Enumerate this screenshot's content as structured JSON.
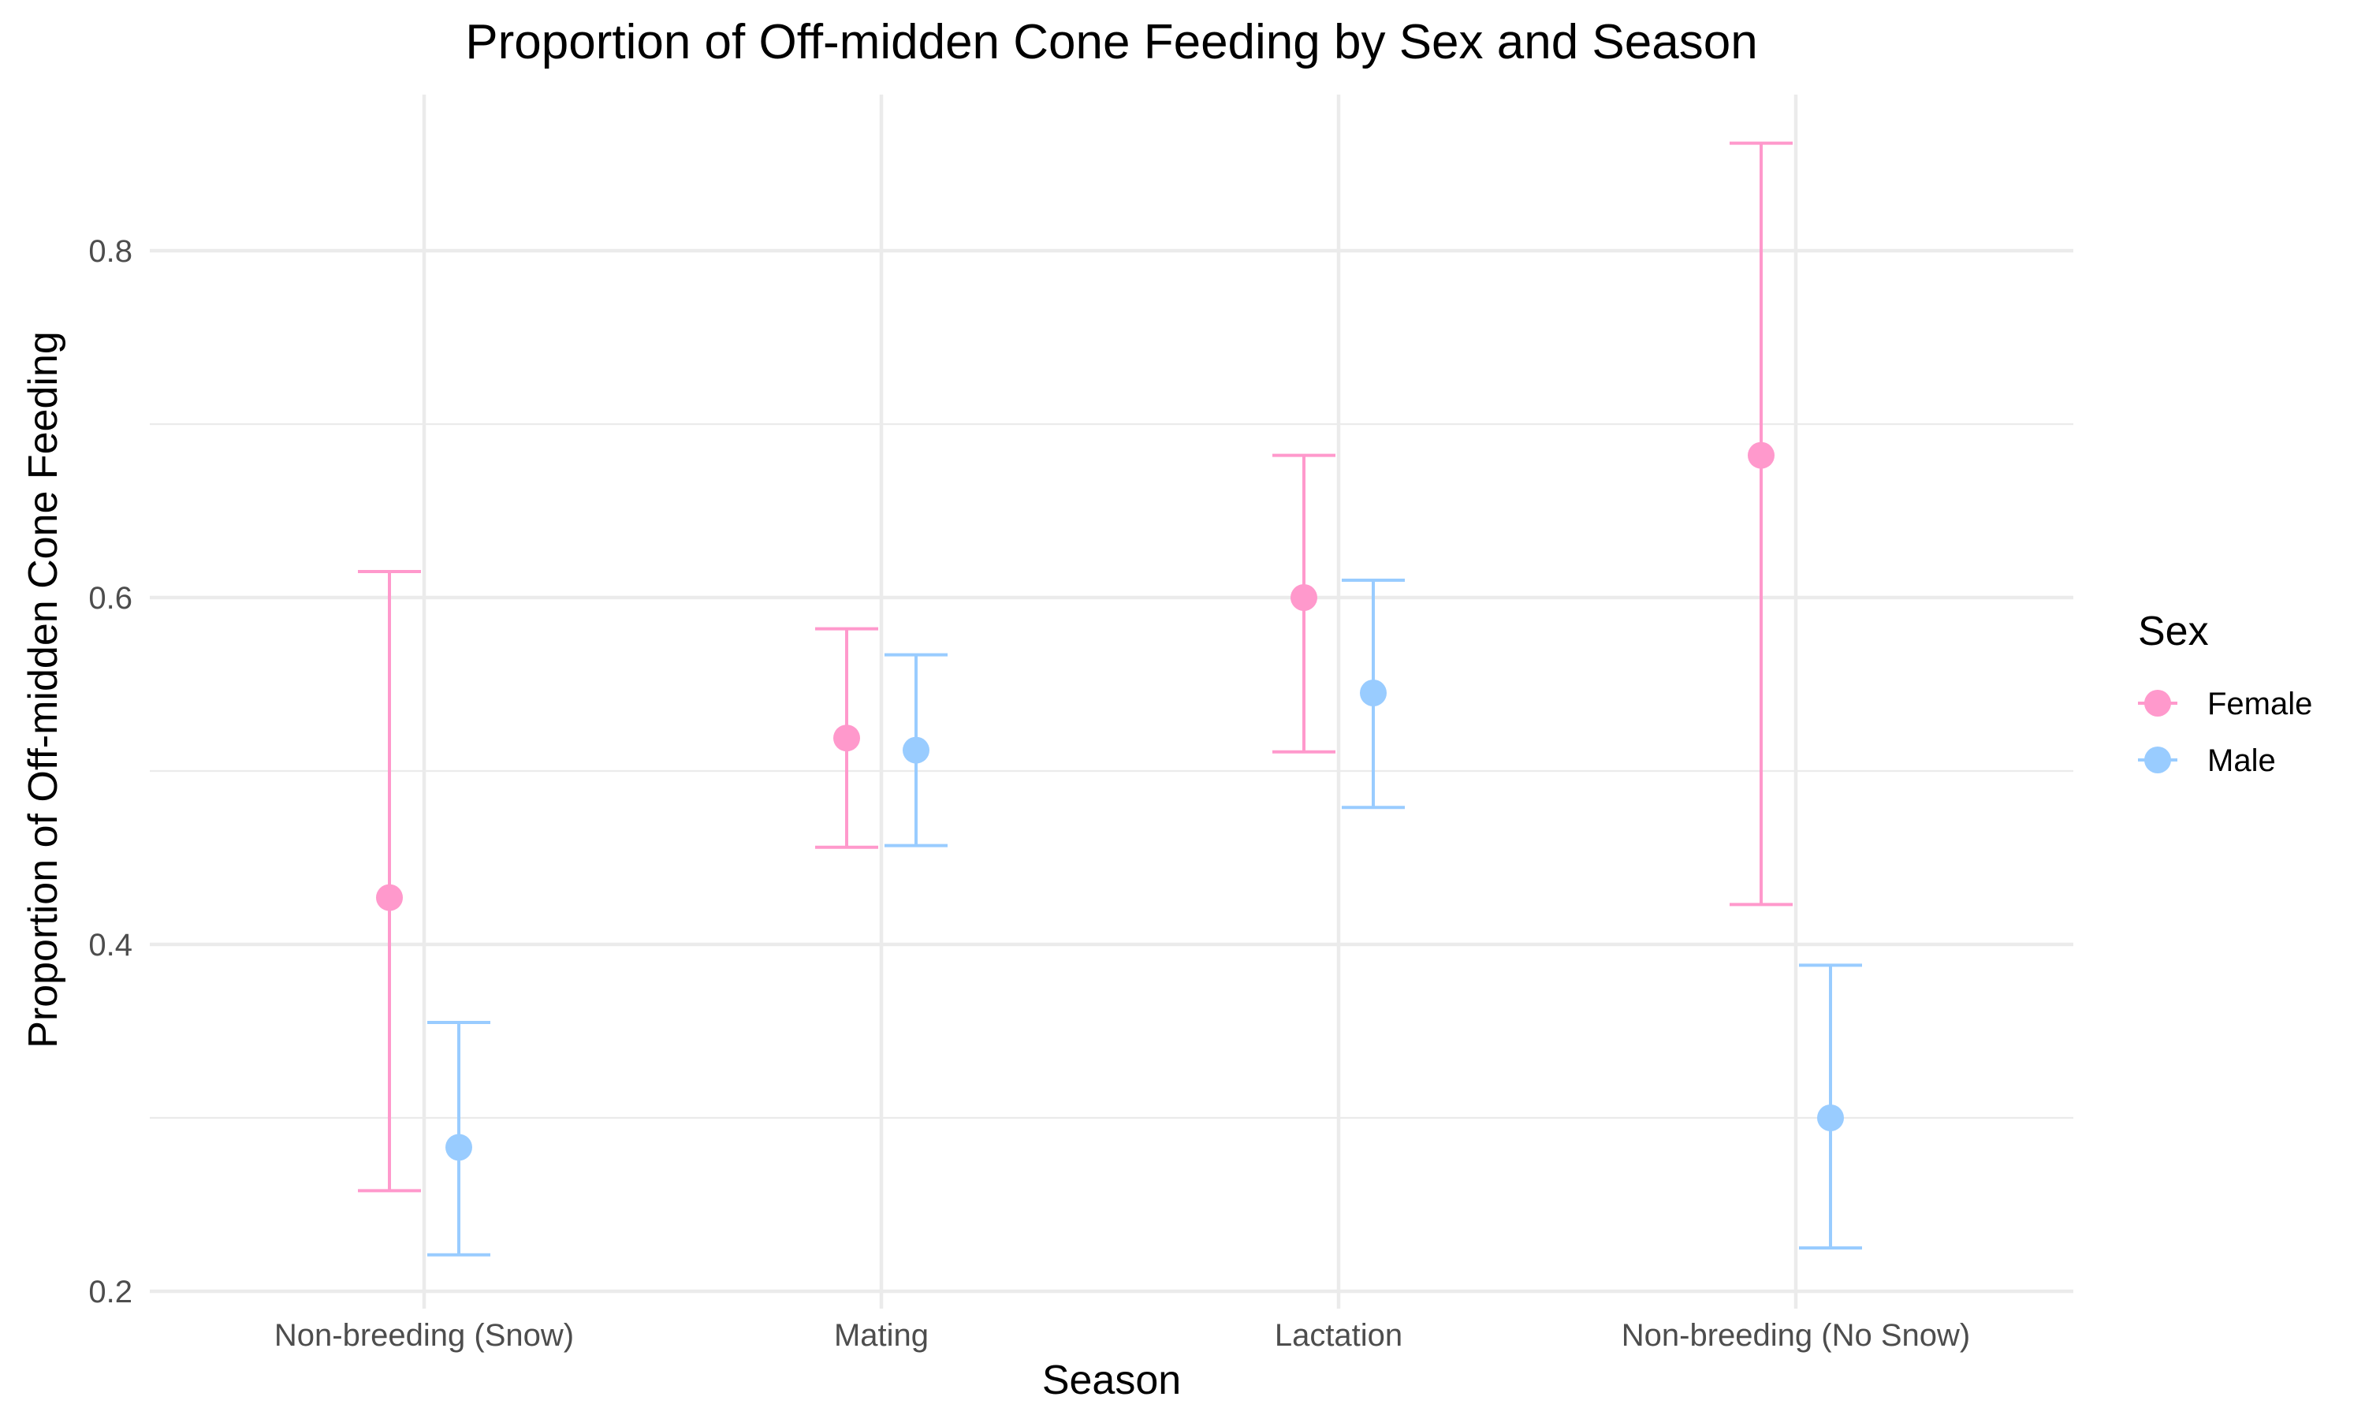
{
  "chart_data": {
    "type": "scatter",
    "subtype": "point-errorbar",
    "title": "Proportion of Off-midden Cone Feeding by Sex and Season",
    "xlabel": "Season",
    "ylabel": "Proportion of Off-midden Cone Feeding",
    "categories": [
      "Non-breeding (Snow)",
      "Mating",
      "Lactation",
      "Non-breeding (No Snow)"
    ],
    "ylim": [
      0.19,
      0.89
    ],
    "yticks": [
      0.2,
      0.4,
      0.6,
      0.8
    ],
    "ytick_labels": [
      "0.2",
      "0.4",
      "0.6",
      "0.8"
    ],
    "grid": true,
    "legend": {
      "title": "Sex",
      "position": "right"
    },
    "series": [
      {
        "name": "Female",
        "color": "#ff99cc",
        "values": [
          0.427,
          0.519,
          0.6,
          0.682
        ],
        "lower": [
          0.258,
          0.456,
          0.511,
          0.423
        ],
        "upper": [
          0.615,
          0.582,
          0.682,
          0.862
        ]
      },
      {
        "name": "Male",
        "color": "#99ccff",
        "values": [
          0.283,
          0.512,
          0.545,
          0.3
        ],
        "lower": [
          0.221,
          0.457,
          0.479,
          0.225
        ],
        "upper": [
          0.355,
          0.567,
          0.61,
          0.388
        ]
      }
    ]
  }
}
